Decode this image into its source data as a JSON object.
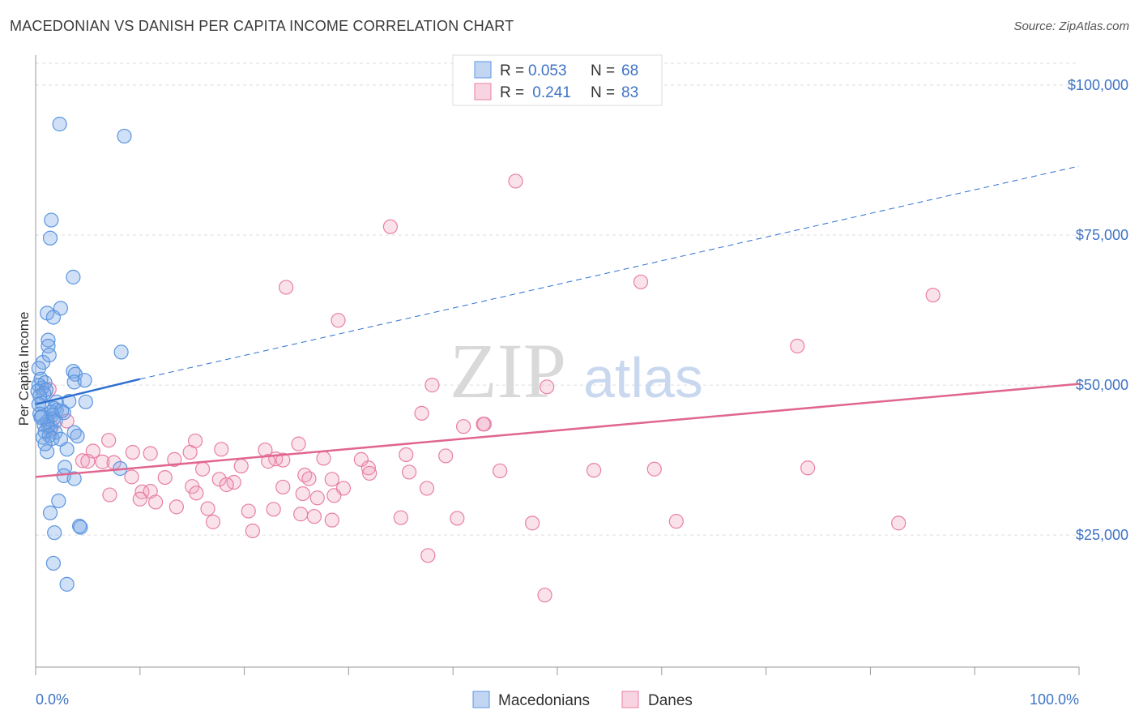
{
  "header": {
    "title": "MACEDONIAN VS DANISH PER CAPITA INCOME CORRELATION CHART",
    "source": "Source: ZipAtlas.com"
  },
  "watermark": {
    "zip": "ZIP",
    "atlas": "atlas"
  },
  "colors": {
    "blue": "#5b95e0",
    "blue_fill": "rgba(120,165,230,0.35)",
    "blue_line": "#2d6fd0",
    "pink": "#e87fa3",
    "pink_fill": "rgba(240,160,190,0.30)",
    "pink_line": "#e0668f",
    "grid": "#dddddd",
    "label_blue": "#3f73c4"
  },
  "legend_top": {
    "rows": [
      {
        "r_label": "R = ",
        "r_value": "0.053",
        "n_label": "N = ",
        "n_value": "68"
      },
      {
        "r_label": "R = ",
        "r_value": " 0.241",
        "n_label": "N = ",
        "n_value": "83"
      }
    ]
  },
  "legend_bottom": {
    "items": [
      {
        "label": "Macedonians"
      },
      {
        "label": "Danes"
      }
    ]
  },
  "chart_data": {
    "type": "scatter",
    "title": "MACEDONIAN VS DANISH PER CAPITA INCOME CORRELATION CHART",
    "xlabel": "",
    "ylabel": "Per Capita Income",
    "xlim": [
      0,
      100
    ],
    "ylim": [
      3000,
      105000
    ],
    "x_tick_labels": [
      "0.0%",
      "100.0%"
    ],
    "y_ticks": [
      25000,
      50000,
      75000,
      100000
    ],
    "y_tick_labels": [
      "$25,000",
      "$50,000",
      "$75,000",
      "$100,000"
    ],
    "grid": true,
    "legend_position": "top-center",
    "series": [
      {
        "name": "Macedonians",
        "r": 0.053,
        "n": 68,
        "trend": {
          "x": [
            0,
            10
          ],
          "y": [
            46800,
            51000
          ],
          "extended_to": [
            100,
            86500
          ],
          "style": "solid then dashed"
        },
        "points": [
          [
            2.3,
            93500
          ],
          [
            8.5,
            91500
          ],
          [
            1.5,
            77500
          ],
          [
            1.4,
            74500
          ],
          [
            3.6,
            68000
          ],
          [
            2.4,
            62800
          ],
          [
            1.1,
            62000
          ],
          [
            1.7,
            61300
          ],
          [
            1.2,
            57500
          ],
          [
            1.2,
            56500
          ],
          [
            8.2,
            55500
          ],
          [
            0.7,
            53800
          ],
          [
            1.3,
            55000
          ],
          [
            0.3,
            52800
          ],
          [
            3.6,
            52300
          ],
          [
            3.8,
            51800
          ],
          [
            3.7,
            50500
          ],
          [
            4.7,
            50800
          ],
          [
            0.5,
            51000
          ],
          [
            0.9,
            50400
          ],
          [
            0.3,
            50000
          ],
          [
            0.6,
            49500
          ],
          [
            1.0,
            49200
          ],
          [
            0.2,
            49000
          ],
          [
            0.8,
            48600
          ],
          [
            0.4,
            48200
          ],
          [
            2.0,
            47200
          ],
          [
            3.2,
            47300
          ],
          [
            4.8,
            47200
          ],
          [
            0.6,
            47000
          ],
          [
            0.3,
            46800
          ],
          [
            1.8,
            46100
          ],
          [
            2.0,
            45800
          ],
          [
            1.5,
            45500
          ],
          [
            2.7,
            45400
          ],
          [
            1.6,
            45000
          ],
          [
            1.7,
            44400
          ],
          [
            0.6,
            44800
          ],
          [
            1.9,
            44000
          ],
          [
            1.1,
            43900
          ],
          [
            0.8,
            43400
          ],
          [
            1.2,
            43100
          ],
          [
            1.4,
            42600
          ],
          [
            0.9,
            42200
          ],
          [
            1.9,
            42100
          ],
          [
            1.3,
            41600
          ],
          [
            0.7,
            41300
          ],
          [
            3.7,
            42100
          ],
          [
            4.0,
            41500
          ],
          [
            1.6,
            41100
          ],
          [
            2.4,
            41000
          ],
          [
            3.0,
            39300
          ],
          [
            1.1,
            38900
          ],
          [
            0.9,
            40200
          ],
          [
            2.8,
            36300
          ],
          [
            8.1,
            36100
          ],
          [
            2.7,
            34900
          ],
          [
            3.7,
            34400
          ],
          [
            2.2,
            30700
          ],
          [
            1.4,
            28700
          ],
          [
            4.2,
            26500
          ],
          [
            4.3,
            26300
          ],
          [
            1.8,
            25400
          ],
          [
            1.7,
            20300
          ],
          [
            3.0,
            16800
          ],
          [
            0.4,
            45200
          ],
          [
            0.5,
            44600
          ],
          [
            2.5,
            45700
          ]
        ]
      },
      {
        "name": "Danes",
        "r": 0.241,
        "n": 83,
        "trend": {
          "x": [
            0,
            100
          ],
          "y": [
            34700,
            50200
          ],
          "style": "solid"
        },
        "points": [
          [
            46,
            84000
          ],
          [
            34,
            76400
          ],
          [
            58,
            67200
          ],
          [
            86,
            65000
          ],
          [
            24,
            66300
          ],
          [
            29,
            60800
          ],
          [
            73,
            56500
          ],
          [
            38,
            50000
          ],
          [
            49,
            49700
          ],
          [
            1.3,
            49300
          ],
          [
            37,
            45300
          ],
          [
            41,
            43100
          ],
          [
            43,
            43500
          ],
          [
            3.0,
            44000
          ],
          [
            1.5,
            43000
          ],
          [
            7,
            40800
          ],
          [
            15.3,
            40700
          ],
          [
            25.2,
            40200
          ],
          [
            17.8,
            39300
          ],
          [
            22,
            39200
          ],
          [
            5.5,
            39000
          ],
          [
            9.3,
            38800
          ],
          [
            14.8,
            38800
          ],
          [
            11,
            38600
          ],
          [
            35.5,
            38400
          ],
          [
            39.3,
            38200
          ],
          [
            23,
            37700
          ],
          [
            23.7,
            37500
          ],
          [
            22.3,
            37300
          ],
          [
            27.6,
            37800
          ],
          [
            31.2,
            37600
          ],
          [
            13.3,
            37600
          ],
          [
            4.5,
            37400
          ],
          [
            6.4,
            37200
          ],
          [
            7.5,
            37100
          ],
          [
            5.0,
            37300
          ],
          [
            19.7,
            36500
          ],
          [
            16.0,
            36000
          ],
          [
            31.9,
            36200
          ],
          [
            53.5,
            35800
          ],
          [
            44.5,
            35700
          ],
          [
            35.8,
            35500
          ],
          [
            32.0,
            35300
          ],
          [
            25.8,
            35000
          ],
          [
            9.2,
            34700
          ],
          [
            12.4,
            34600
          ],
          [
            17.6,
            34300
          ],
          [
            26.2,
            34400
          ],
          [
            28.4,
            34300
          ],
          [
            19.0,
            33800
          ],
          [
            18.3,
            33400
          ],
          [
            15.0,
            33100
          ],
          [
            23.7,
            33000
          ],
          [
            37.5,
            32800
          ],
          [
            29.5,
            32800
          ],
          [
            10.2,
            32200
          ],
          [
            11.0,
            32300
          ],
          [
            7.1,
            31700
          ],
          [
            15.4,
            32000
          ],
          [
            25.6,
            31900
          ],
          [
            27.0,
            31200
          ],
          [
            28.6,
            31600
          ],
          [
            10.0,
            31000
          ],
          [
            11.5,
            30500
          ],
          [
            13.5,
            29700
          ],
          [
            16.5,
            29400
          ],
          [
            20.4,
            29000
          ],
          [
            22.8,
            29300
          ],
          [
            25.4,
            28500
          ],
          [
            26.7,
            28100
          ],
          [
            35.0,
            27900
          ],
          [
            40.4,
            27800
          ],
          [
            47.6,
            27000
          ],
          [
            61.4,
            27300
          ],
          [
            82.7,
            27000
          ],
          [
            17.0,
            27200
          ],
          [
            20.8,
            25700
          ],
          [
            37.6,
            21600
          ],
          [
            48.8,
            15000
          ],
          [
            59.3,
            36000
          ],
          [
            74.0,
            36200
          ],
          [
            42.9,
            43500
          ],
          [
            28.4,
            27500
          ]
        ]
      }
    ]
  }
}
